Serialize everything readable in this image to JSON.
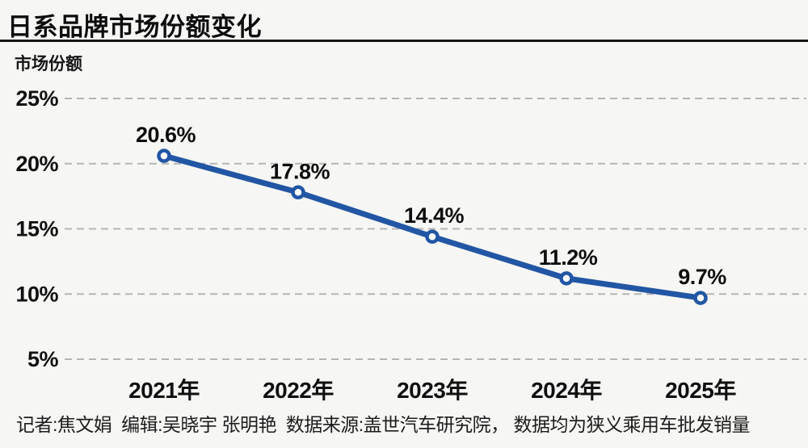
{
  "header": {
    "title": "日系品牌市场份额变化"
  },
  "chart_data": {
    "type": "line",
    "title": "日系品牌市场份额变化",
    "ylabel": "市场份额",
    "xlabel": "",
    "categories": [
      "2021年",
      "2022年",
      "2023年",
      "2024年",
      "2025年"
    ],
    "values": [
      20.6,
      17.8,
      14.4,
      11.2,
      9.7
    ],
    "point_labels": [
      "20.6%",
      "17.8%",
      "14.4%",
      "11.2%",
      "9.7%"
    ],
    "yticks": [
      25,
      20,
      15,
      10,
      5
    ],
    "ytick_labels": [
      "25%",
      "20%",
      "15%",
      "10%",
      "5%"
    ],
    "ylim": [
      5,
      25
    ],
    "grid": "horizontal-dashed",
    "legend": "none",
    "line_color": "#2156a4",
    "marker": "open-circle",
    "marker_fill": "#ffffff",
    "grid_color": "#b5b5b5",
    "text_color": "#101010",
    "background": "#f6f6f4"
  },
  "footer": {
    "credits": "记者:焦文娟  编辑:吴晓宇 张明艳  数据来源:盖世汽车研究院， 数据均为狭义乘用车批发销量"
  }
}
